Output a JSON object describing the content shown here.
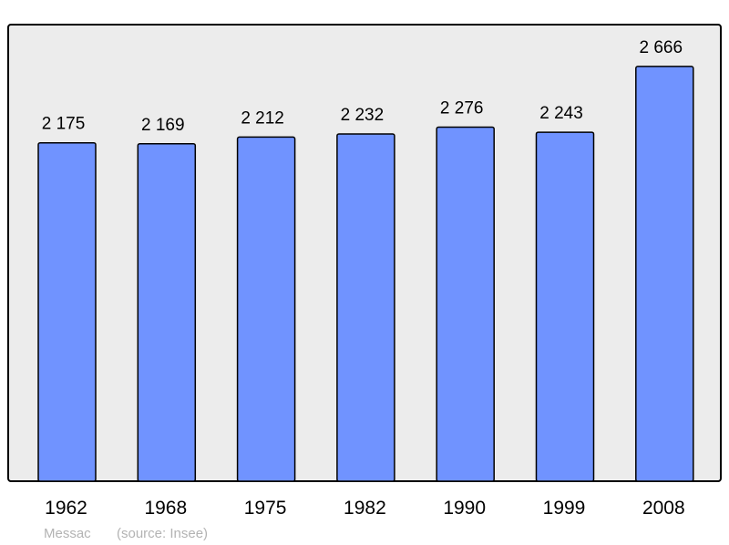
{
  "chart_data": {
    "type": "bar",
    "categories": [
      "1962",
      "1968",
      "1975",
      "1982",
      "1990",
      "1999",
      "2008"
    ],
    "values": [
      2175,
      2169,
      2212,
      2232,
      2276,
      2243,
      2666
    ],
    "value_labels": [
      "2 175",
      "2 169",
      "2 212",
      "2 232",
      "2 276",
      "2 243",
      "2 666"
    ],
    "title": "",
    "xlabel": "",
    "ylabel": "",
    "ylim": [
      0,
      2935
    ],
    "grid": false,
    "colors": {
      "bar": "#7093ff",
      "plot_background": "#ececec",
      "border": "#000000"
    },
    "footnote": {
      "place": "Messac",
      "source": "(source: Insee)"
    }
  }
}
